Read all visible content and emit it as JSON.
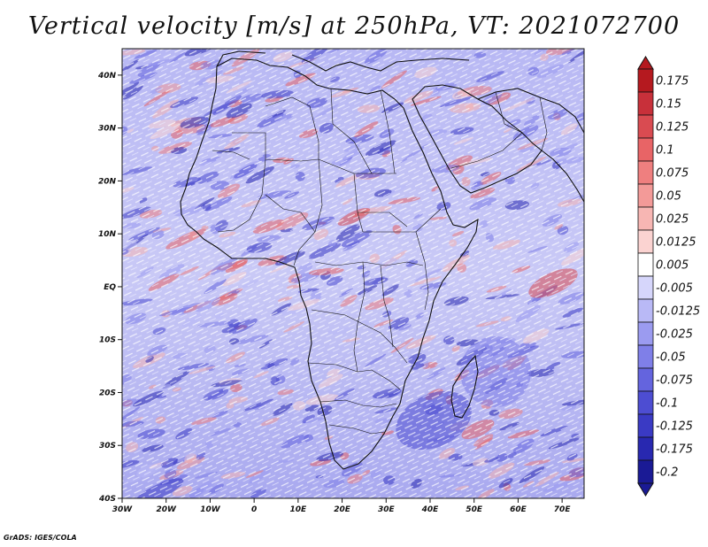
{
  "title": "Vertical velocity [m/s] at 250hPa, VT: 2021072700",
  "credit": "GrADS: IGES/COLA",
  "map": {
    "variable": "Vertical velocity",
    "units": "m/s",
    "level": "250hPa",
    "valid_time": "2021072700",
    "lon_range": [
      -30,
      75
    ],
    "lat_range": [
      -40,
      45
    ],
    "lat_ticks": [
      "40N",
      "30N",
      "20N",
      "10N",
      "EQ",
      "10S",
      "20S",
      "30S",
      "40S"
    ],
    "lon_ticks": [
      "30W",
      "20W",
      "10W",
      "0",
      "10E",
      "20E",
      "30E",
      "40E",
      "50E",
      "60E",
      "70E"
    ]
  },
  "colorbar": {
    "labels": [
      "0.175",
      "0.15",
      "0.125",
      "0.1",
      "0.075",
      "0.05",
      "0.025",
      "0.0125",
      "0.005",
      "-0.005",
      "-0.0125",
      "-0.025",
      "-0.05",
      "-0.075",
      "-0.1",
      "-0.125",
      "-0.175",
      "-0.2"
    ],
    "colors": [
      "#b5191f",
      "#c8303a",
      "#d94b51",
      "#e86466",
      "#ef7f7f",
      "#f39a98",
      "#f7b6b3",
      "#fbd3d1",
      "#ffffff",
      "#d6d6fb",
      "#b9b9f6",
      "#9b9bf0",
      "#7f7fe8",
      "#6464de",
      "#4d4dd2",
      "#3a3ac4",
      "#2828b0",
      "#1a1a95"
    ]
  }
}
